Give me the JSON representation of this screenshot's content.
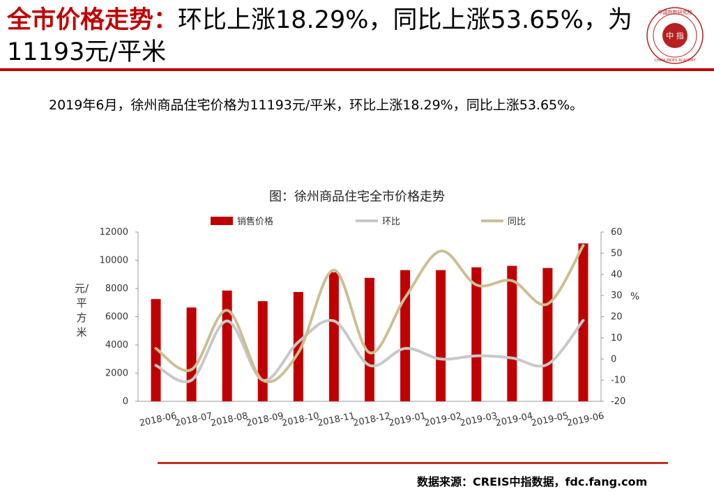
{
  "header": {
    "title_highlight": "全市价格走势：",
    "title_rest": "环比上涨18.29%，同比上涨53.65%，为11193元/平米"
  },
  "summary": "2019年6月，徐州商品住宅价格为11193元/平米，环比上涨18.29%，同比上涨53.65%。",
  "logo": {
    "center_text": "中 指",
    "ring_text": "中国指数研究院",
    "english_text": "CHINA INDEX ACADEMY"
  },
  "chart_data": {
    "type": "bar",
    "title": "图：徐州商品住宅全市价格走势",
    "categories": [
      "2018-06",
      "2018-07",
      "2018-08",
      "2018-09",
      "2018-10",
      "2018-11",
      "2018-12",
      "2019-01",
      "2019-02",
      "2019-03",
      "2019-04",
      "2019-05",
      "2019-06"
    ],
    "series": [
      {
        "name": "销售价格",
        "type": "bar",
        "axis": "left",
        "color": "#c00000",
        "values": [
          7250,
          6650,
          7850,
          7100,
          7750,
          9150,
          8750,
          9300,
          9300,
          9500,
          9600,
          9450,
          11193
        ]
      },
      {
        "name": "环比",
        "type": "line",
        "axis": "right",
        "color": "#c8c8c8",
        "values": [
          -3,
          -10,
          18,
          -10,
          8,
          18,
          -3,
          5,
          0,
          1.5,
          0.5,
          -2.5,
          18.29
        ]
      },
      {
        "name": "同比",
        "type": "line",
        "axis": "right",
        "color": "#cbbf94",
        "values": [
          5,
          -5,
          23,
          -10,
          3,
          42,
          3,
          29,
          51,
          35,
          37,
          26,
          53.65
        ]
      }
    ],
    "y_left": {
      "label": "元/平方米",
      "min": 0,
      "max": 12000,
      "ticks": [
        "0",
        "2000",
        "4000",
        "6000",
        "8000",
        "10000",
        "12000"
      ]
    },
    "y_right": {
      "label": "%",
      "min": -20,
      "max": 60,
      "ticks": [
        "-20",
        "-10",
        "0",
        "10",
        "20",
        "30",
        "40",
        "50",
        "60"
      ]
    },
    "legend_position": "top",
    "grid": false
  },
  "footer": {
    "source": "数据来源：CREIS中指数据，fdc.fang.com"
  }
}
